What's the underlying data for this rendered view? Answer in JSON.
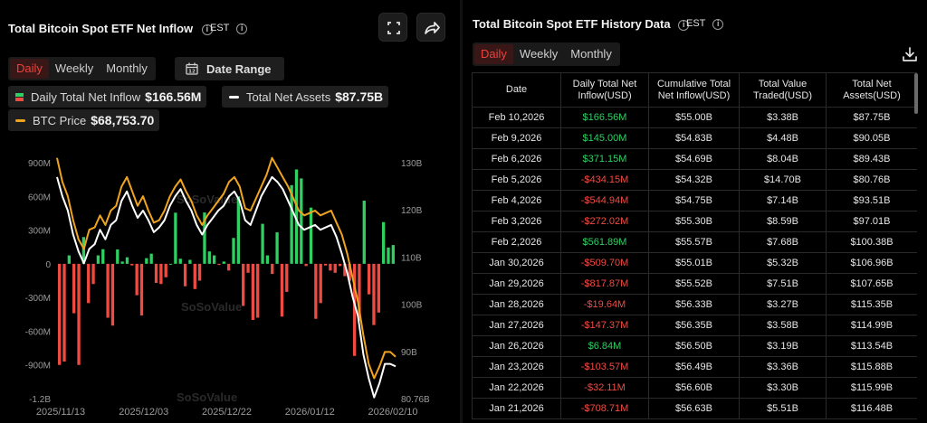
{
  "left": {
    "title": "Total Bitcoin Spot ETF Net Inflow",
    "timezone": "EST",
    "tabs": [
      {
        "label": "Daily",
        "active": true
      },
      {
        "label": "Weekly",
        "active": false
      },
      {
        "label": "Monthly",
        "active": false
      }
    ],
    "date_range_label": "Date Range",
    "legend": {
      "net_inflow_label": "Daily Total Net Inflow",
      "net_inflow_value": "$166.56M",
      "net_assets_label": "Total Net Assets",
      "net_assets_value": "$87.75B",
      "btc_label": "BTC Price",
      "btc_value": "$68,753.70"
    },
    "icons": {
      "fullscreen": "fullscreen-icon",
      "share": "share-icon",
      "calendar": "calendar-icon",
      "info": "info-icon"
    }
  },
  "right": {
    "title": "Total Bitcoin Spot ETF History Data",
    "timezone": "EST",
    "tabs": [
      {
        "label": "Daily",
        "active": true
      },
      {
        "label": "Weekly",
        "active": false
      },
      {
        "label": "Monthly",
        "active": false
      }
    ],
    "icons": {
      "download": "download-icon",
      "info": "info-icon"
    },
    "columns": [
      "Date",
      "Daily Total Net Inflow(USD)",
      "Cumulative Total Net Inflow(USD)",
      "Total Value Traded(USD)",
      "Total Net Assets(USD)"
    ],
    "rows": [
      {
        "date": "Feb 10,2026",
        "inflow": "$166.56M",
        "sign": "pos",
        "cumulative": "$55.00B",
        "traded": "$3.38B",
        "assets": "$87.75B"
      },
      {
        "date": "Feb 9,2026",
        "inflow": "$145.00M",
        "sign": "pos",
        "cumulative": "$54.83B",
        "traded": "$4.48B",
        "assets": "$90.05B"
      },
      {
        "date": "Feb 6,2026",
        "inflow": "$371.15M",
        "sign": "pos",
        "cumulative": "$54.69B",
        "traded": "$8.04B",
        "assets": "$89.43B"
      },
      {
        "date": "Feb 5,2026",
        "inflow": "-$434.15M",
        "sign": "neg",
        "cumulative": "$54.32B",
        "traded": "$14.70B",
        "assets": "$80.76B"
      },
      {
        "date": "Feb 4,2026",
        "inflow": "-$544.94M",
        "sign": "neg",
        "cumulative": "$54.75B",
        "traded": "$7.14B",
        "assets": "$93.51B"
      },
      {
        "date": "Feb 3,2026",
        "inflow": "-$272.02M",
        "sign": "neg",
        "cumulative": "$55.30B",
        "traded": "$8.59B",
        "assets": "$97.01B"
      },
      {
        "date": "Feb 2,2026",
        "inflow": "$561.89M",
        "sign": "pos",
        "cumulative": "$55.57B",
        "traded": "$7.68B",
        "assets": "$100.38B"
      },
      {
        "date": "Jan 30,2026",
        "inflow": "-$509.70M",
        "sign": "neg",
        "cumulative": "$55.01B",
        "traded": "$5.32B",
        "assets": "$106.96B"
      },
      {
        "date": "Jan 29,2026",
        "inflow": "-$817.87M",
        "sign": "neg",
        "cumulative": "$55.52B",
        "traded": "$7.51B",
        "assets": "$107.65B"
      },
      {
        "date": "Jan 28,2026",
        "inflow": "-$19.64M",
        "sign": "neg",
        "cumulative": "$56.33B",
        "traded": "$3.27B",
        "assets": "$115.35B"
      },
      {
        "date": "Jan 27,2026",
        "inflow": "-$147.37M",
        "sign": "neg",
        "cumulative": "$56.35B",
        "traded": "$3.58B",
        "assets": "$114.99B"
      },
      {
        "date": "Jan 26,2026",
        "inflow": "$6.84M",
        "sign": "pos",
        "cumulative": "$56.50B",
        "traded": "$3.19B",
        "assets": "$113.54B"
      },
      {
        "date": "Jan 23,2026",
        "inflow": "-$103.57M",
        "sign": "neg",
        "cumulative": "$56.49B",
        "traded": "$3.36B",
        "assets": "$115.88B"
      },
      {
        "date": "Jan 22,2026",
        "inflow": "-$32.11M",
        "sign": "neg",
        "cumulative": "$56.60B",
        "traded": "$3.30B",
        "assets": "$115.99B"
      },
      {
        "date": "Jan 21,2026",
        "inflow": "-$708.71M",
        "sign": "neg",
        "cumulative": "$56.63B",
        "traded": "$5.51B",
        "assets": "$116.48B"
      }
    ]
  },
  "colors": {
    "positive": "#2fcf62",
    "negative": "#ef4b43",
    "btc_line": "#f0a41e",
    "assets_line": "#ffffff",
    "active_tab": "#e9433c"
  },
  "chart_data": {
    "type": "bar",
    "y_left": {
      "ticks": [
        "900M",
        "600M",
        "300M",
        "0",
        "-300M",
        "-600M",
        "-900M",
        "-1.2B"
      ],
      "range": [
        -1200,
        900
      ],
      "unit": "M"
    },
    "y_right": {
      "ticks": [
        "130B",
        "120B",
        "110B",
        "100B",
        "90B",
        "80.76B"
      ],
      "range": [
        80.76,
        130
      ]
    },
    "x_ticks": [
      "2025/11/13",
      "2025/12/03",
      "2025/12/22",
      "2026/01/12",
      "2026/02/10"
    ],
    "series": [
      {
        "name": "Daily Total Net Inflow",
        "kind": "bar",
        "values": [
          -900,
          -870,
          75,
          -440,
          -900,
          238,
          -350,
          -180,
          75,
          130,
          -480,
          -550,
          128,
          20,
          58,
          -14,
          -280,
          -460,
          50,
          90,
          -170,
          -180,
          -120,
          0,
          455,
          45,
          -200,
          35,
          -225,
          -150,
          457,
          110,
          75,
          -10,
          20,
          -60,
          230,
          600,
          -375,
          -80,
          -500,
          -480,
          356,
          75,
          -90,
          280,
          -470,
          -250,
          700,
          840,
          760,
          -20,
          500,
          -490,
          -350,
          -15,
          -60,
          -80,
          -20,
          -110,
          -150,
          -820,
          -510,
          562,
          -272,
          -545,
          -434,
          371,
          145,
          167
        ]
      },
      {
        "name": "Total Net Assets",
        "kind": "line",
        "axis": "right",
        "values": [
          127,
          123,
          120,
          115,
          111.5,
          109,
          112,
          113,
          116,
          114,
          117,
          118,
          122,
          124,
          121,
          118.5,
          120,
          118,
          115.5,
          116.5,
          118,
          121,
          123,
          124.5,
          122,
          120,
          117,
          115,
          117,
          118.5,
          120,
          121,
          123,
          124,
          122,
          118,
          117,
          120,
          123,
          125,
          127,
          126,
          124.5,
          122,
          119.5,
          117,
          116,
          116.5,
          117,
          116,
          116.5,
          117,
          114.5,
          111,
          107,
          102,
          98,
          90,
          85,
          81,
          84,
          88,
          88,
          87.5
        ]
      },
      {
        "name": "BTC Price",
        "kind": "line",
        "axis": "right",
        "values": [
          131,
          126,
          123,
          118,
          114,
          112,
          116,
          116.5,
          119,
          117,
          120,
          121,
          125,
          127,
          124,
          121,
          123,
          120,
          117.5,
          118,
          120,
          123,
          125,
          126.5,
          124,
          122,
          119,
          117,
          119,
          120.5,
          122,
          123.5,
          126,
          127,
          125,
          120.5,
          120,
          122.5,
          125,
          127.5,
          131,
          129,
          127,
          125,
          122.5,
          120,
          119,
          119.5,
          120,
          119,
          119.5,
          120,
          117.5,
          115,
          111,
          106,
          101,
          94,
          88,
          85,
          87.5,
          90.5,
          90.5,
          89.5
        ]
      }
    ],
    "watermark": "SoSoValue"
  }
}
